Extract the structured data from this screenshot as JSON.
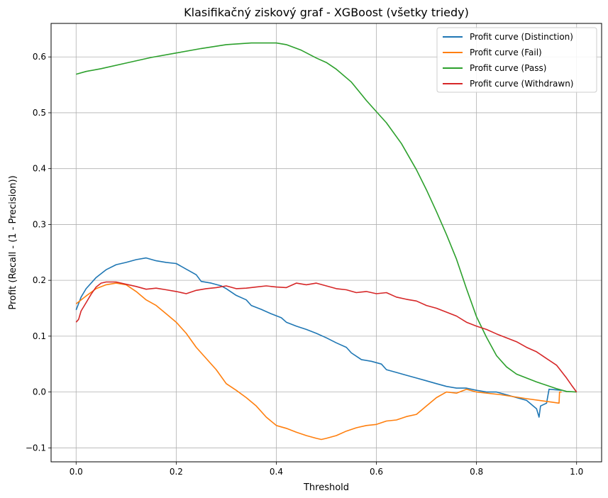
{
  "chart_data": {
    "type": "line",
    "title": "Klasifikačný ziskový graf - XGBoost (všetky triedy)",
    "xlabel": "Threshold",
    "ylabel": "Profit (Recall - (1 - Precision))",
    "xlim": [
      -0.05,
      1.05
    ],
    "ylim": [
      -0.125,
      0.66
    ],
    "xticks": [
      0.0,
      0.2,
      0.4,
      0.6,
      0.8,
      1.0
    ],
    "xtick_labels": [
      "0.0",
      "0.2",
      "0.4",
      "0.6",
      "0.8",
      "1.0"
    ],
    "yticks": [
      -0.1,
      0.0,
      0.1,
      0.2,
      0.3,
      0.4,
      0.5,
      0.6
    ],
    "ytick_labels": [
      "−0.1",
      "0.0",
      "0.1",
      "0.2",
      "0.3",
      "0.4",
      "0.5",
      "0.6"
    ],
    "grid": true,
    "legend_position": "top-right",
    "series": [
      {
        "name": "Profit curve (Distinction)",
        "color": "#1f77b4",
        "points": [
          [
            0.0,
            0.147
          ],
          [
            0.01,
            0.17
          ],
          [
            0.02,
            0.185
          ],
          [
            0.04,
            0.205
          ],
          [
            0.06,
            0.219
          ],
          [
            0.08,
            0.228
          ],
          [
            0.1,
            0.232
          ],
          [
            0.12,
            0.237
          ],
          [
            0.14,
            0.24
          ],
          [
            0.16,
            0.235
          ],
          [
            0.18,
            0.232
          ],
          [
            0.2,
            0.23
          ],
          [
            0.22,
            0.22
          ],
          [
            0.24,
            0.21
          ],
          [
            0.25,
            0.198
          ],
          [
            0.27,
            0.195
          ],
          [
            0.29,
            0.19
          ],
          [
            0.3,
            0.185
          ],
          [
            0.32,
            0.173
          ],
          [
            0.34,
            0.165
          ],
          [
            0.35,
            0.155
          ],
          [
            0.37,
            0.148
          ],
          [
            0.39,
            0.14
          ],
          [
            0.41,
            0.133
          ],
          [
            0.42,
            0.125
          ],
          [
            0.44,
            0.118
          ],
          [
            0.46,
            0.112
          ],
          [
            0.48,
            0.105
          ],
          [
            0.5,
            0.097
          ],
          [
            0.52,
            0.088
          ],
          [
            0.54,
            0.08
          ],
          [
            0.55,
            0.07
          ],
          [
            0.57,
            0.058
          ],
          [
            0.59,
            0.055
          ],
          [
            0.61,
            0.05
          ],
          [
            0.62,
            0.04
          ],
          [
            0.64,
            0.035
          ],
          [
            0.66,
            0.03
          ],
          [
            0.68,
            0.025
          ],
          [
            0.7,
            0.02
          ],
          [
            0.72,
            0.015
          ],
          [
            0.74,
            0.01
          ],
          [
            0.76,
            0.007
          ],
          [
            0.78,
            0.007
          ],
          [
            0.8,
            0.003
          ],
          [
            0.82,
            0.0
          ],
          [
            0.84,
            0.0
          ],
          [
            0.86,
            -0.005
          ],
          [
            0.88,
            -0.01
          ],
          [
            0.9,
            -0.015
          ],
          [
            0.92,
            -0.03
          ],
          [
            0.925,
            -0.045
          ],
          [
            0.928,
            -0.025
          ],
          [
            0.94,
            -0.02
          ],
          [
            0.945,
            0.005
          ],
          [
            0.97,
            0.003
          ]
        ]
      },
      {
        "name": "Profit curve (Fail)",
        "color": "#ff7f0e",
        "points": [
          [
            0.0,
            0.158
          ],
          [
            0.02,
            0.172
          ],
          [
            0.04,
            0.185
          ],
          [
            0.06,
            0.192
          ],
          [
            0.08,
            0.195
          ],
          [
            0.1,
            0.192
          ],
          [
            0.12,
            0.18
          ],
          [
            0.14,
            0.165
          ],
          [
            0.16,
            0.155
          ],
          [
            0.18,
            0.14
          ],
          [
            0.2,
            0.125
          ],
          [
            0.22,
            0.105
          ],
          [
            0.24,
            0.08
          ],
          [
            0.26,
            0.06
          ],
          [
            0.28,
            0.04
          ],
          [
            0.3,
            0.015
          ],
          [
            0.32,
            0.003
          ],
          [
            0.34,
            -0.01
          ],
          [
            0.36,
            -0.025
          ],
          [
            0.38,
            -0.045
          ],
          [
            0.4,
            -0.06
          ],
          [
            0.42,
            -0.065
          ],
          [
            0.44,
            -0.072
          ],
          [
            0.46,
            -0.078
          ],
          [
            0.48,
            -0.083
          ],
          [
            0.49,
            -0.085
          ],
          [
            0.5,
            -0.083
          ],
          [
            0.52,
            -0.078
          ],
          [
            0.54,
            -0.07
          ],
          [
            0.56,
            -0.064
          ],
          [
            0.58,
            -0.06
          ],
          [
            0.6,
            -0.058
          ],
          [
            0.62,
            -0.052
          ],
          [
            0.64,
            -0.05
          ],
          [
            0.66,
            -0.044
          ],
          [
            0.68,
            -0.04
          ],
          [
            0.7,
            -0.025
          ],
          [
            0.72,
            -0.01
          ],
          [
            0.74,
            0.0
          ],
          [
            0.76,
            -0.002
          ],
          [
            0.78,
            0.005
          ],
          [
            0.8,
            0.0
          ],
          [
            0.85,
            -0.005
          ],
          [
            0.9,
            -0.012
          ],
          [
            0.95,
            -0.018
          ],
          [
            0.965,
            -0.02
          ],
          [
            0.966,
            0.0
          ],
          [
            0.97,
            0.0
          ]
        ]
      },
      {
        "name": "Profit curve (Pass)",
        "color": "#2ca02c",
        "points": [
          [
            0.0,
            0.569
          ],
          [
            0.02,
            0.574
          ],
          [
            0.05,
            0.579
          ],
          [
            0.1,
            0.589
          ],
          [
            0.15,
            0.599
          ],
          [
            0.2,
            0.607
          ],
          [
            0.25,
            0.615
          ],
          [
            0.3,
            0.622
          ],
          [
            0.35,
            0.625
          ],
          [
            0.4,
            0.625
          ],
          [
            0.42,
            0.622
          ],
          [
            0.45,
            0.612
          ],
          [
            0.48,
            0.598
          ],
          [
            0.5,
            0.59
          ],
          [
            0.52,
            0.578
          ],
          [
            0.55,
            0.555
          ],
          [
            0.58,
            0.522
          ],
          [
            0.6,
            0.502
          ],
          [
            0.62,
            0.482
          ],
          [
            0.65,
            0.445
          ],
          [
            0.68,
            0.398
          ],
          [
            0.7,
            0.362
          ],
          [
            0.72,
            0.323
          ],
          [
            0.74,
            0.282
          ],
          [
            0.76,
            0.238
          ],
          [
            0.78,
            0.185
          ],
          [
            0.8,
            0.135
          ],
          [
            0.82,
            0.098
          ],
          [
            0.84,
            0.065
          ],
          [
            0.86,
            0.045
          ],
          [
            0.88,
            0.032
          ],
          [
            0.9,
            0.025
          ],
          [
            0.92,
            0.018
          ],
          [
            0.94,
            0.012
          ],
          [
            0.96,
            0.006
          ],
          [
            0.98,
            0.001
          ],
          [
            1.0,
            0.0
          ]
        ]
      },
      {
        "name": "Profit curve (Withdrawn)",
        "color": "#d62728",
        "points": [
          [
            0.0,
            0.125
          ],
          [
            0.005,
            0.13
          ],
          [
            0.01,
            0.145
          ],
          [
            0.02,
            0.16
          ],
          [
            0.03,
            0.175
          ],
          [
            0.04,
            0.188
          ],
          [
            0.05,
            0.195
          ],
          [
            0.06,
            0.197
          ],
          [
            0.08,
            0.197
          ],
          [
            0.1,
            0.193
          ],
          [
            0.12,
            0.189
          ],
          [
            0.14,
            0.184
          ],
          [
            0.16,
            0.186
          ],
          [
            0.18,
            0.183
          ],
          [
            0.2,
            0.18
          ],
          [
            0.22,
            0.176
          ],
          [
            0.24,
            0.182
          ],
          [
            0.26,
            0.185
          ],
          [
            0.28,
            0.187
          ],
          [
            0.3,
            0.19
          ],
          [
            0.32,
            0.185
          ],
          [
            0.34,
            0.186
          ],
          [
            0.36,
            0.188
          ],
          [
            0.38,
            0.19
          ],
          [
            0.4,
            0.188
          ],
          [
            0.42,
            0.187
          ],
          [
            0.44,
            0.195
          ],
          [
            0.46,
            0.192
          ],
          [
            0.48,
            0.195
          ],
          [
            0.5,
            0.19
          ],
          [
            0.52,
            0.185
          ],
          [
            0.54,
            0.183
          ],
          [
            0.56,
            0.178
          ],
          [
            0.58,
            0.18
          ],
          [
            0.6,
            0.176
          ],
          [
            0.62,
            0.178
          ],
          [
            0.64,
            0.17
          ],
          [
            0.66,
            0.166
          ],
          [
            0.68,
            0.163
          ],
          [
            0.7,
            0.155
          ],
          [
            0.72,
            0.15
          ],
          [
            0.74,
            0.143
          ],
          [
            0.76,
            0.136
          ],
          [
            0.78,
            0.125
          ],
          [
            0.8,
            0.118
          ],
          [
            0.82,
            0.112
          ],
          [
            0.84,
            0.104
          ],
          [
            0.86,
            0.097
          ],
          [
            0.88,
            0.09
          ],
          [
            0.9,
            0.08
          ],
          [
            0.92,
            0.072
          ],
          [
            0.94,
            0.06
          ],
          [
            0.96,
            0.048
          ],
          [
            0.98,
            0.025
          ],
          [
            0.99,
            0.012
          ],
          [
            1.0,
            0.0
          ]
        ]
      }
    ]
  }
}
